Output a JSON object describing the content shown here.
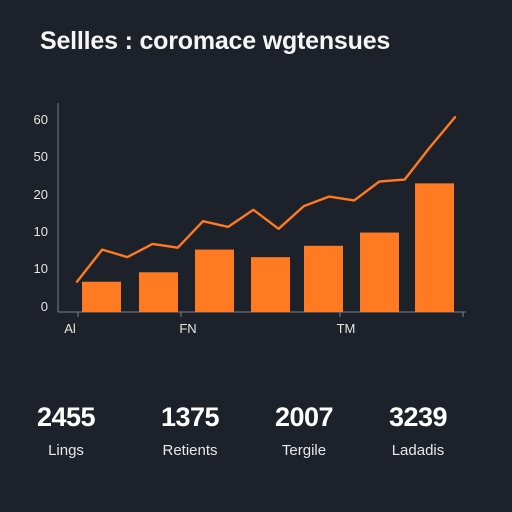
{
  "title": "Sellles : coromace wgtensues",
  "accent_color": "#ff7a21",
  "background_color": "#1c212a",
  "chart_data": {
    "type": "bar",
    "x_tick_labels": [
      "Al",
      "FN",
      "TM"
    ],
    "y_tick_labels": [
      "0",
      "10",
      "10",
      "20",
      "50",
      "60"
    ],
    "grid": false,
    "bar_values": [
      8,
      10.5,
      16.5,
      14.5,
      17.5,
      21,
      34
    ],
    "line_values": [
      8,
      16.5,
      14.5,
      18,
      17,
      24,
      22.5,
      27,
      22,
      28,
      30.5,
      29.5,
      34.5,
      35,
      43.5,
      51.5
    ]
  },
  "stats": [
    {
      "value": "2455",
      "label": "Lings"
    },
    {
      "value": "1375",
      "label": "Retients"
    },
    {
      "value": "2007",
      "label": "Tergile"
    },
    {
      "value": "3239",
      "label": "Ladadis"
    }
  ]
}
